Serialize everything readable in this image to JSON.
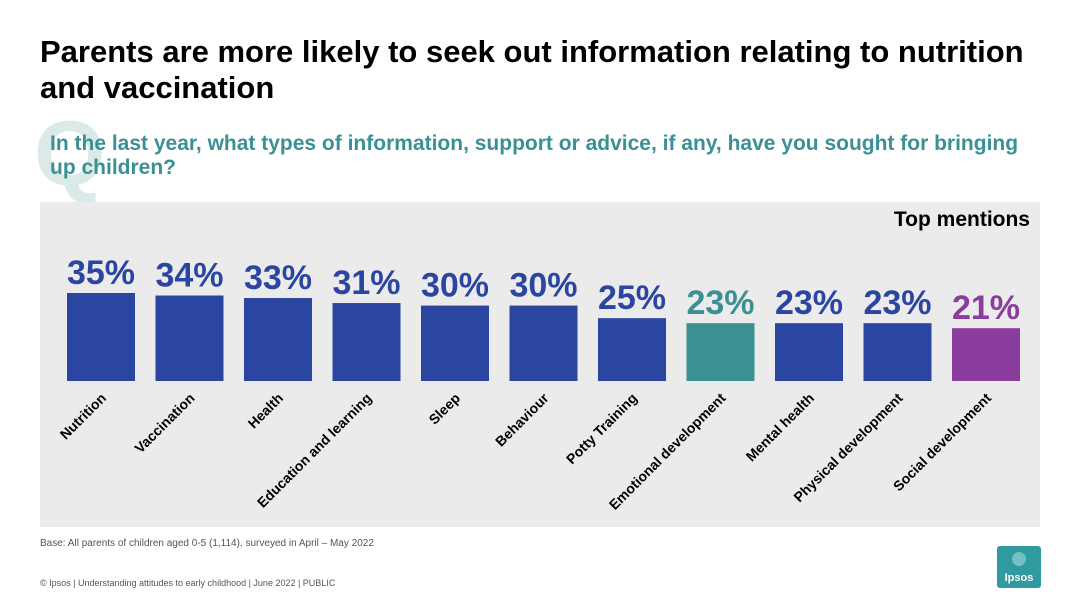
{
  "header": {
    "title": "Parents are more likely to seek out information relating to nutrition and vaccination",
    "question_glyph": "Q",
    "question": "In the last year, what types of information, support or advice, if any, have you sought for bringing up children?"
  },
  "chart_data": {
    "type": "bar",
    "title": "Top mentions",
    "categories": [
      "Nutrition",
      "Vaccination",
      "Health",
      "Education and learning",
      "Sleep",
      "Behaviour",
      "Potty Training",
      "Emotional development",
      "Mental health",
      "Physical development",
      "Social development"
    ],
    "values": [
      35,
      34,
      33,
      31,
      30,
      30,
      25,
      23,
      23,
      23,
      21
    ],
    "value_suffix": "%",
    "colors": [
      "#2b46a0",
      "#2b46a0",
      "#2b46a0",
      "#2b46a0",
      "#2b46a0",
      "#2b46a0",
      "#2b46a0",
      "#3b9094",
      "#2b46a0",
      "#2b46a0",
      "#8a3d9c"
    ],
    "ylim": [
      0,
      35
    ],
    "grid": false,
    "legend": "none"
  },
  "notes": {
    "base": "Base: All parents of children aged 0-5 (1,114), surveyed in April – May 2022"
  },
  "footer": {
    "text": "© Ipsos | Understanding attitudes to early childhood | June 2022 | PUBLIC",
    "logo_text": "Ipsos"
  },
  "colors": {
    "question_text": "#3b9094",
    "panel_bg": "#ebebeb",
    "logo_bg": "#2f9aa0"
  }
}
